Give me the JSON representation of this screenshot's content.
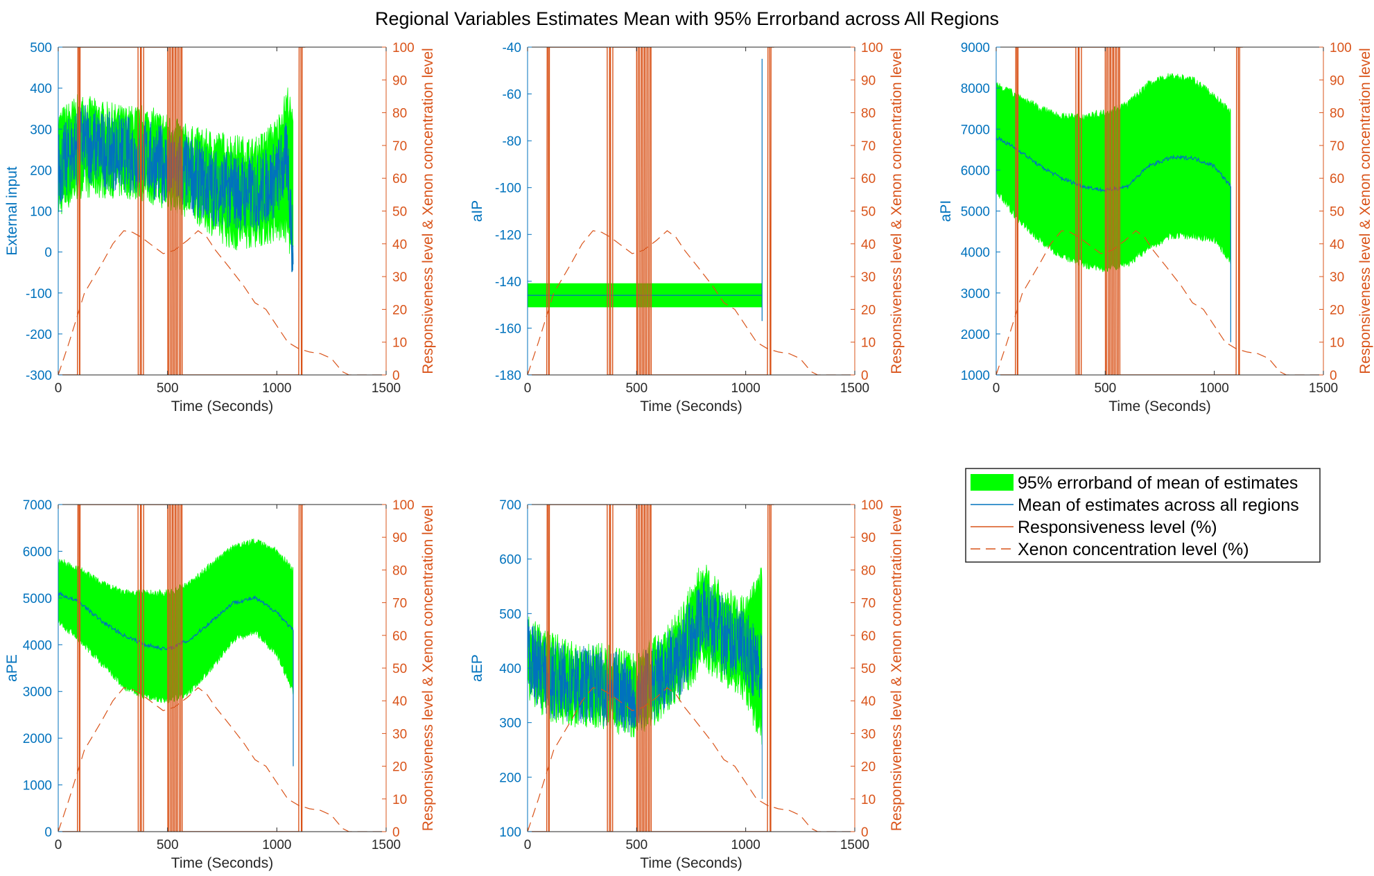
{
  "figure": {
    "title": "Regional Variables Estimates Mean with 95% Errorband across All Regions"
  },
  "legend": {
    "position": "right of bottom row",
    "entries": [
      {
        "label": "95% errorband of mean of estimates",
        "kind": "band",
        "color": "#00FF00"
      },
      {
        "label": "Mean of estimates across all regions",
        "kind": "line",
        "color": "#0072BD"
      },
      {
        "label": "Responsiveness level (%)",
        "kind": "line",
        "color": "#D95319"
      },
      {
        "label": "Xenon concentration level (%)",
        "kind": "dashed",
        "color": "#D95319"
      }
    ]
  },
  "colors": {
    "band": "#00FF00",
    "mean": "#0072BD",
    "secondary": "#D95319",
    "axis": "#262626"
  },
  "chart_data": [
    {
      "type": "line",
      "ylabel": "External input",
      "xlabel": "Time (Seconds)",
      "xlim": [
        0,
        1500
      ],
      "ylim": [
        -300,
        500
      ],
      "xticks": [
        0,
        500,
        1000,
        1500
      ],
      "yticks": [
        -300,
        -200,
        -100,
        0,
        100,
        200,
        300,
        400,
        500
      ],
      "ylabel_right": "Responsiveness level & Xenon concentration level",
      "ylim_right": [
        0,
        100
      ],
      "yticks_right": [
        0,
        10,
        20,
        30,
        40,
        50,
        60,
        70,
        80,
        90,
        100
      ],
      "band": {
        "x": [
          0,
          100,
          200,
          300,
          400,
          500,
          600,
          700,
          800,
          900,
          1000,
          1050,
          1075
        ],
        "lower": [
          120,
          170,
          170,
          170,
          160,
          140,
          120,
          80,
          40,
          50,
          60,
          60,
          -20
        ],
        "upper": [
          310,
          350,
          330,
          320,
          320,
          300,
          270,
          260,
          250,
          240,
          290,
          370,
          300
        ]
      },
      "mean": {
        "x": [
          0,
          100,
          200,
          300,
          400,
          500,
          600,
          700,
          800,
          900,
          1000,
          1050,
          1075
        ],
        "y": [
          200,
          270,
          250,
          240,
          230,
          210,
          190,
          160,
          150,
          140,
          180,
          230,
          -30
        ],
        "noise": "high"
      }
    },
    {
      "type": "line",
      "ylabel": "aIP",
      "xlabel": "Time (Seconds)",
      "xlim": [
        0,
        1500
      ],
      "ylim": [
        -180,
        -40
      ],
      "xticks": [
        0,
        500,
        1000,
        1500
      ],
      "yticks": [
        -180,
        -160,
        -140,
        -120,
        -100,
        -80,
        -60,
        -40
      ],
      "ylabel_right": "Responsiveness level & Xenon concentration level",
      "ylim_right": [
        0,
        100
      ],
      "yticks_right": [
        0,
        10,
        20,
        30,
        40,
        50,
        60,
        70,
        80,
        90,
        100
      ],
      "band": {
        "x": [
          0,
          1075
        ],
        "lower": [
          -151,
          -151
        ],
        "upper": [
          -141,
          -141
        ]
      },
      "mean": {
        "x": [
          0,
          1075,
          1075,
          1075
        ],
        "y": [
          -146,
          -146,
          -157,
          -45
        ],
        "noise": "none"
      }
    },
    {
      "type": "line",
      "ylabel": "aPI",
      "xlabel": "Time (Seconds)",
      "xlim": [
        0,
        1500
      ],
      "ylim": [
        1000,
        9000
      ],
      "xticks": [
        0,
        500,
        1000,
        1500
      ],
      "yticks": [
        1000,
        2000,
        3000,
        4000,
        5000,
        6000,
        7000,
        8000,
        9000
      ],
      "ylabel_right": "Responsiveness level & Xenon concentration level",
      "ylim_right": [
        0,
        100
      ],
      "yticks_right": [
        0,
        10,
        20,
        30,
        40,
        50,
        60,
        70,
        80,
        90,
        100
      ],
      "band": {
        "x": [
          0,
          100,
          200,
          300,
          400,
          500,
          600,
          700,
          800,
          900,
          1000,
          1075
        ],
        "lower": [
          5500,
          4800,
          4300,
          3900,
          3700,
          3600,
          3700,
          4100,
          4400,
          4400,
          4300,
          3800
        ],
        "upper": [
          8100,
          7800,
          7500,
          7300,
          7300,
          7400,
          7600,
          8100,
          8300,
          8200,
          7800,
          7400
        ]
      },
      "mean": {
        "x": [
          0,
          100,
          200,
          300,
          400,
          500,
          600,
          700,
          800,
          900,
          1000,
          1075,
          1075
        ],
        "y": [
          6800,
          6500,
          6100,
          5800,
          5600,
          5500,
          5600,
          6100,
          6300,
          6300,
          6100,
          5600,
          1800
        ],
        "noise": "low"
      }
    },
    {
      "type": "line",
      "ylabel": "aPE",
      "xlabel": "Time (Seconds)",
      "xlim": [
        0,
        1500
      ],
      "ylim": [
        0,
        7000
      ],
      "xticks": [
        0,
        500,
        1000,
        1500
      ],
      "yticks": [
        0,
        1000,
        2000,
        3000,
        4000,
        5000,
        6000,
        7000
      ],
      "ylabel_right": "Responsiveness level & Xenon concentration level",
      "ylim_right": [
        0,
        100
      ],
      "yticks_right": [
        0,
        10,
        20,
        30,
        40,
        50,
        60,
        70,
        80,
        90,
        100
      ],
      "band": {
        "x": [
          0,
          100,
          200,
          300,
          400,
          500,
          600,
          700,
          800,
          900,
          1000,
          1075
        ],
        "lower": [
          4500,
          4100,
          3600,
          3100,
          2900,
          2800,
          3000,
          3500,
          4100,
          4300,
          3800,
          3000
        ],
        "upper": [
          5800,
          5600,
          5300,
          5100,
          5100,
          5100,
          5300,
          5700,
          6100,
          6200,
          6000,
          5600
        ]
      },
      "mean": {
        "x": [
          0,
          100,
          200,
          300,
          400,
          500,
          600,
          700,
          800,
          900,
          1000,
          1075,
          1075
        ],
        "y": [
          5100,
          4900,
          4500,
          4200,
          4000,
          3900,
          4100,
          4500,
          4900,
          5000,
          4700,
          4300,
          1400
        ],
        "noise": "low"
      }
    },
    {
      "type": "line",
      "ylabel": "aEP",
      "xlabel": "Time (Seconds)",
      "xlim": [
        0,
        1500
      ],
      "ylim": [
        100,
        700
      ],
      "xticks": [
        0,
        500,
        1000,
        1500
      ],
      "yticks": [
        100,
        200,
        300,
        400,
        500,
        600,
        700
      ],
      "ylabel_right": "Responsiveness level & Xenon concentration level",
      "ylim_right": [
        0,
        100
      ],
      "yticks_right": [
        0,
        10,
        20,
        30,
        40,
        50,
        60,
        70,
        80,
        90,
        100
      ],
      "band": {
        "x": [
          0,
          100,
          200,
          300,
          400,
          500,
          600,
          700,
          800,
          900,
          1000,
          1075
        ],
        "lower": [
          370,
          330,
          320,
          320,
          310,
          300,
          330,
          370,
          420,
          400,
          360,
          280
        ],
        "upper": [
          470,
          440,
          420,
          420,
          410,
          400,
          440,
          480,
          570,
          520,
          500,
          560
        ]
      },
      "mean": {
        "x": [
          0,
          100,
          200,
          300,
          400,
          500,
          600,
          700,
          800,
          900,
          1000,
          1075,
          1075
        ],
        "y": [
          420,
          380,
          370,
          370,
          360,
          350,
          380,
          420,
          500,
          460,
          430,
          400,
          160
        ],
        "noise": "high"
      }
    }
  ],
  "shared_right_series": {
    "responsiveness_steps": [
      [
        0,
        0
      ],
      [
        88,
        0
      ],
      [
        90,
        100
      ],
      [
        95,
        100
      ],
      [
        97,
        0
      ],
      [
        99,
        0
      ],
      [
        100,
        100
      ],
      [
        365,
        100
      ],
      [
        366,
        0
      ],
      [
        375,
        0
      ],
      [
        376,
        100
      ],
      [
        380,
        100
      ],
      [
        381,
        0
      ],
      [
        390,
        0
      ],
      [
        391,
        100
      ],
      [
        500,
        100
      ],
      [
        501,
        0
      ],
      [
        506,
        0
      ],
      [
        507,
        100
      ],
      [
        513,
        100
      ],
      [
        514,
        0
      ],
      [
        520,
        0
      ],
      [
        521,
        100
      ],
      [
        526,
        100
      ],
      [
        527,
        0
      ],
      [
        533,
        0
      ],
      [
        534,
        100
      ],
      [
        539,
        100
      ],
      [
        540,
        0
      ],
      [
        546,
        0
      ],
      [
        547,
        100
      ],
      [
        553,
        100
      ],
      [
        554,
        0
      ],
      [
        560,
        0
      ],
      [
        561,
        100
      ],
      [
        566,
        100
      ],
      [
        567,
        0
      ],
      [
        1100,
        0
      ],
      [
        1102,
        100
      ],
      [
        1110,
        100
      ],
      [
        1112,
        0
      ],
      [
        1115,
        0
      ],
      [
        1116,
        100
      ],
      [
        1130,
        100
      ]
    ],
    "xenon": [
      [
        0,
        0
      ],
      [
        50,
        10
      ],
      [
        120,
        25
      ],
      [
        200,
        34
      ],
      [
        250,
        40
      ],
      [
        300,
        44
      ],
      [
        340,
        43.5
      ],
      [
        380,
        42
      ],
      [
        420,
        40
      ],
      [
        480,
        37
      ],
      [
        530,
        38
      ],
      [
        590,
        41
      ],
      [
        640,
        44
      ],
      [
        680,
        42
      ],
      [
        720,
        38
      ],
      [
        780,
        33
      ],
      [
        850,
        27
      ],
      [
        900,
        22
      ],
      [
        950,
        20
      ],
      [
        1000,
        15
      ],
      [
        1050,
        10
      ],
      [
        1100,
        8
      ],
      [
        1150,
        7
      ],
      [
        1200,
        6.5
      ],
      [
        1250,
        5
      ],
      [
        1300,
        1
      ],
      [
        1330,
        0
      ],
      [
        1500,
        0
      ]
    ]
  }
}
